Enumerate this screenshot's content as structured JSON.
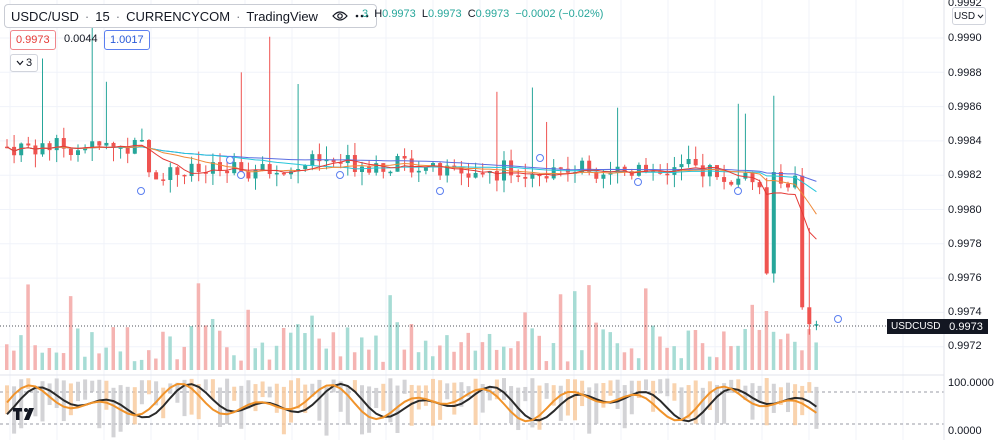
{
  "header": {
    "symbol": "USDC/USD",
    "interval": "15",
    "exchange": "CURRENCYCOM",
    "platform": "TradingView",
    "ohlc": {
      "open_partial": "3",
      "high_label": "H",
      "high": "0.9973",
      "low_label": "L",
      "low": "0.9973",
      "close_label": "C",
      "close": "0.9973",
      "change": "−0.0002 (−0.02%)"
    },
    "bid": "0.9973",
    "spread": "0.0044",
    "ask": "1.0017",
    "indicators_count": "3",
    "currency": "USD"
  },
  "price_axis": {
    "top_partial": "0.9992",
    "labels": [
      "0.9990",
      "0.9988",
      "0.9986",
      "0.9984",
      "0.9982",
      "0.9980",
      "0.9978",
      "0.9976",
      "0.9974",
      "0.9972"
    ],
    "symbol_tag": "USDCUSD",
    "last_price": "0.9973"
  },
  "oscillator_axis": {
    "labels": [
      "100.0000",
      "0.0000"
    ]
  },
  "colors": {
    "up": "#26a69a",
    "down": "#ef5350",
    "ma_blue": "#5b6ee1",
    "ma_teal": "#26c6da",
    "ma_orange": "#ef8a3a",
    "ma_red": "#e53935",
    "osc_orange": "#f0932b",
    "osc_black": "#2a2a2a"
  },
  "icons": {
    "eye": "eye-icon",
    "more": "more-icon",
    "collapse": "chevron-down-icon",
    "logo": "tradingview-logo"
  },
  "chart_data": {
    "type": "candlestick",
    "ylim": [
      0.9971,
      0.9992
    ],
    "last": 0.9973,
    "seed": 7,
    "bars": 115
  }
}
